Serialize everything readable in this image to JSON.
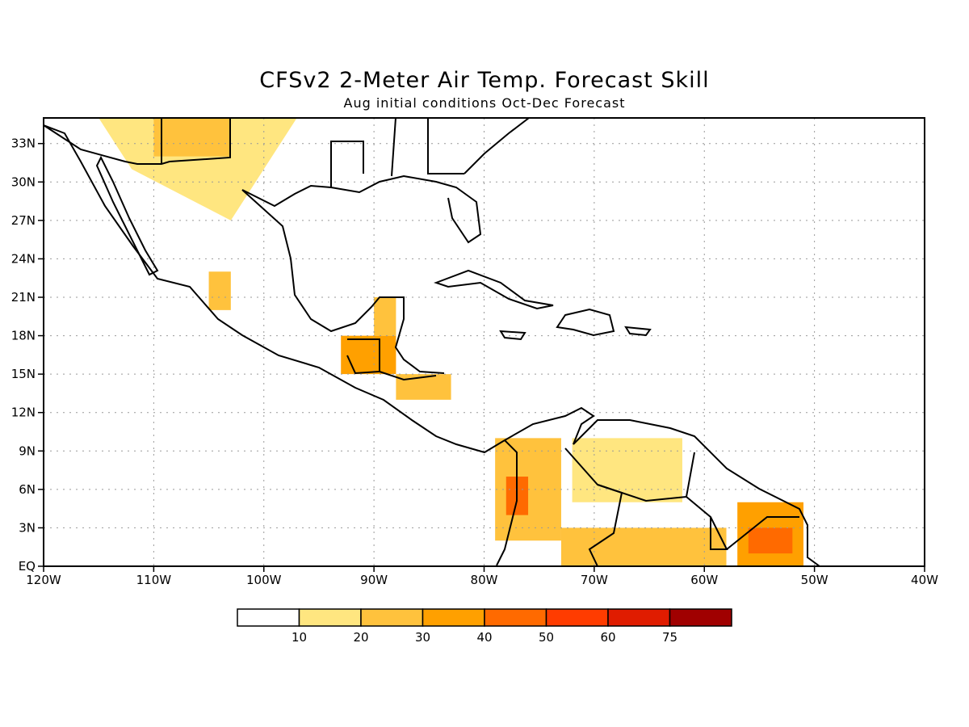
{
  "title": "CFSv2 2-Meter Air Temp. Forecast Skill",
  "subtitle": "Aug initial conditions  Oct-Dec Forecast",
  "map": {
    "lon_ticks": [
      "120W",
      "110W",
      "100W",
      "90W",
      "80W",
      "70W",
      "60W",
      "50W",
      "40W"
    ],
    "lat_ticks": [
      "EQ",
      "3N",
      "6N",
      "9N",
      "12N",
      "15N",
      "18N",
      "21N",
      "24N",
      "27N",
      "30N",
      "33N"
    ],
    "lon_range": [
      -120,
      -40
    ],
    "lat_range": [
      0,
      35
    ],
    "grid": "dotted"
  },
  "colorbar": {
    "labels": [
      "10",
      "20",
      "30",
      "40",
      "50",
      "60",
      "75"
    ],
    "colors": [
      "#ffffff",
      "#ffe680",
      "#ffc23d",
      "#ffa000",
      "#ff6a00",
      "#ff3c00",
      "#e01c00",
      "#a00000"
    ]
  },
  "skill_patches": [
    {
      "level": 1,
      "lon": [
        -115,
        -97,
        -100,
        -103,
        -112
      ],
      "lat": [
        35,
        35,
        31,
        27,
        31
      ]
    },
    {
      "level": 2,
      "lon": [
        -110,
        -103,
        -103,
        -110
      ],
      "lat": [
        35,
        35,
        32,
        32
      ]
    },
    {
      "level": 2,
      "lon": [
        -105,
        -103,
        -103,
        -105
      ],
      "lat": [
        23,
        23,
        20,
        20
      ]
    },
    {
      "level": 3,
      "lon": [
        -93,
        -88,
        -88,
        -93
      ],
      "lat": [
        18,
        18,
        15,
        15
      ]
    },
    {
      "level": 2,
      "lon": [
        -90,
        -88,
        -88,
        -90
      ],
      "lat": [
        21,
        21,
        18,
        18
      ]
    },
    {
      "level": 2,
      "lon": [
        -88,
        -83,
        -83,
        -88
      ],
      "lat": [
        15,
        15,
        13,
        13
      ]
    },
    {
      "level": 2,
      "lon": [
        -79,
        -73,
        -73,
        -79
      ],
      "lat": [
        10,
        10,
        2,
        2
      ]
    },
    {
      "level": 4,
      "lon": [
        -78,
        -76,
        -76,
        -78
      ],
      "lat": [
        7,
        7,
        4,
        4
      ]
    },
    {
      "level": 1,
      "lon": [
        -72,
        -62,
        -62,
        -72
      ],
      "lat": [
        10,
        10,
        5,
        5
      ]
    },
    {
      "level": 2,
      "lon": [
        -73,
        -58,
        -58,
        -73
      ],
      "lat": [
        3,
        3,
        0,
        0
      ]
    },
    {
      "level": 3,
      "lon": [
        -57,
        -51,
        -51,
        -57
      ],
      "lat": [
        5,
        5,
        0,
        0
      ]
    },
    {
      "level": 4,
      "lon": [
        -56,
        -52,
        -52,
        -56
      ],
      "lat": [
        3,
        3,
        1,
        1
      ]
    }
  ]
}
